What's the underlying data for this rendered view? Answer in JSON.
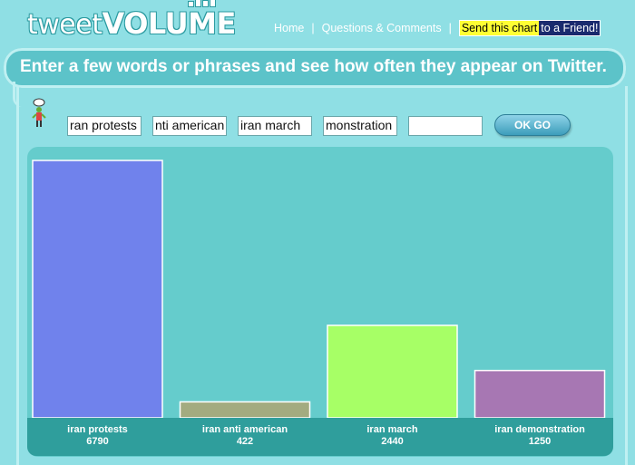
{
  "header": {
    "logo_tweet": "tweet",
    "logo_volume": "VOLUME"
  },
  "nav": {
    "home": "Home",
    "questions": "Questions & Comments",
    "send_part1": "Send this chart",
    "send_part2": "to a Friend!"
  },
  "banner": {
    "text": "Enter a few words or phrases and see how often they appear on Twitter."
  },
  "inputs": {
    "values": [
      "ran protests",
      "nti american",
      "iran march",
      "monstration",
      ""
    ],
    "button_label": "OK GO"
  },
  "colors": {
    "background": "#8fdfe4",
    "chart_bg": "#65cccc",
    "band": "#2f9e9c"
  },
  "chart_data": {
    "type": "bar",
    "categories": [
      "iran protests",
      "iran anti american",
      "iran march",
      "iran demonstration"
    ],
    "values": [
      6790,
      422,
      2440,
      1250
    ],
    "colors": [
      "#7082ec",
      "#a3ab80",
      "#a7ff66",
      "#a777b3"
    ],
    "ylim": [
      0,
      6790
    ]
  }
}
